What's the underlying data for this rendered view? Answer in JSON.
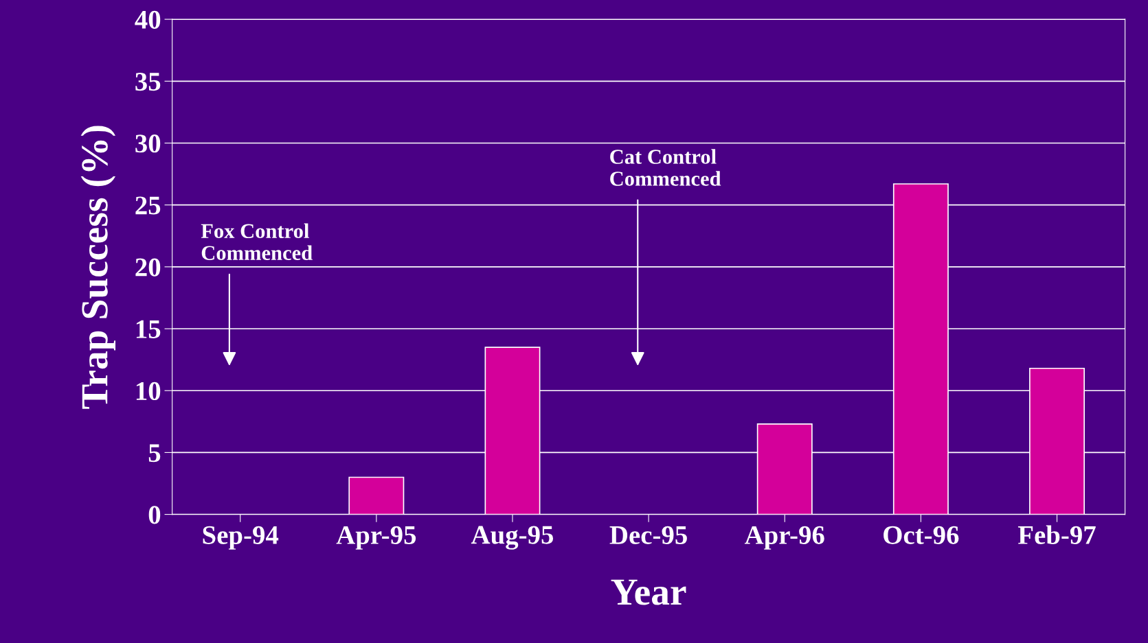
{
  "chart_data": {
    "type": "bar",
    "xlabel": "Year",
    "ylabel": "Trap Success (%)",
    "categories": [
      "Sep-94",
      "Apr-95",
      "Aug-95",
      "Dec-95",
      "Apr-96",
      "Oct-96",
      "Feb-97"
    ],
    "values": [
      0,
      3,
      13.5,
      0,
      7.3,
      26.7,
      11.8
    ],
    "color": "#d4009a",
    "ylim": [
      0,
      40
    ],
    "yticks": [
      0,
      5,
      10,
      15,
      20,
      25,
      30,
      35,
      40
    ],
    "grid": "y",
    "annotations": [
      "Fox Control\nCommenced",
      "Cat Control\nCommenced"
    ]
  }
}
